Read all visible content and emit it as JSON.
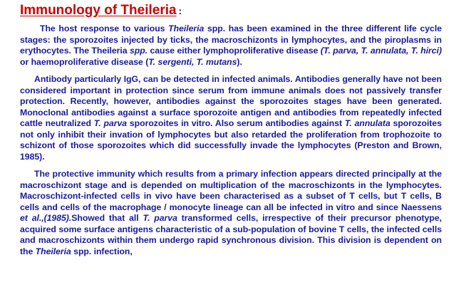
{
  "document": {
    "title": "Immunology of Theileria",
    "title_suffix": ":",
    "paragraphs": [
      {
        "runs": [
          {
            "text": "The host response to various ",
            "italic": false
          },
          {
            "text": "Theileria",
            "italic": true
          },
          {
            "text": " spp. has been examined in the three different life cycle stages: the sporozoites injected by ticks, the macroschizonts in lymphocytes, and the piroplasms in erythocytes. The Theileria ",
            "italic": false
          },
          {
            "text": "spp.",
            "italic": true
          },
          {
            "text": " cause either lymphoproliferative disease ",
            "italic": false
          },
          {
            "text": "(T. parva, T. annulata, T. hirci)",
            "italic": true
          },
          {
            "text": " or haemoproliferative disease (",
            "italic": false
          },
          {
            "text": "T. sergenti, T. mutans",
            "italic": true
          },
          {
            "text": ").",
            "italic": false
          }
        ]
      },
      {
        "runs": [
          {
            "text": "Antibody particularly IgG, can be detected in infected animals. Antibodies generally have not been considered important in protection since serum from immune animals does not passively transfer protection.  Recently, however, antibodies against the sporozoites stages have been generated. Monoclonal antibodies against a surface sporozoite antigen and antibodies from repeatedly infected cattle neutralized ",
            "italic": false
          },
          {
            "text": "T. parva",
            "italic": true
          },
          {
            "text": " sporozoites in vitro. Also serum antibodies against ",
            "italic": false
          },
          {
            "text": "T. annulata",
            "italic": true
          },
          {
            "text": " sporozoites not only inhibit their invation of lymphocytes but also retarded the proliferation from trophozoite to schizont of those sporozoites which did successfully invade the lymphocytes (Preston and Brown, 1985).",
            "italic": false
          }
        ]
      },
      {
        "runs": [
          {
            "text": "The protective immunity which results from a primary infection appears directed principally at the macroschizont stage and is depended on multiplication of the macroschizonts in the lymphocytes. Macroschizont-infected cells in vivo have been characterised as a subset of T cells, but T cells, B cells and cells of the macrophage / monocyte lineage can all be infected in vitro and since Naessens ",
            "italic": false
          },
          {
            "text": "et al.,(1985).",
            "italic": true
          },
          {
            "text": "Showed that all ",
            "italic": false
          },
          {
            "text": "T. parva",
            "italic": true
          },
          {
            "text": " transformed cells, irrespective of their precursor phenotype, acquired some surface antigens characteristic of a sub-population of bovine T cells, the infected cells and macroschizonts within them undergo rapid synchronous division. This division is  dependent on the  ",
            "italic": false
          },
          {
            "text": "Theileria",
            "italic": true
          },
          {
            "text": "  spp.  infection,",
            "italic": false
          }
        ]
      }
    ]
  },
  "colors": {
    "title": "#cc0000",
    "body_text": "#1a1a99",
    "background": "#ffffff"
  }
}
